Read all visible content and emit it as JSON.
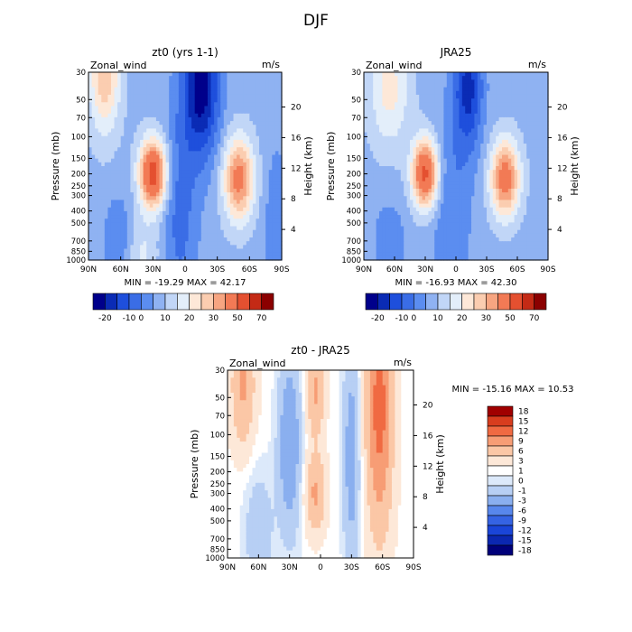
{
  "figure_title": "DJF",
  "colors": {
    "ramp_fullfield": [
      "#00008b",
      "#0a2bb5",
      "#1e4fdc",
      "#3a6de6",
      "#5b8df0",
      "#8fb2f2",
      "#c1d6f7",
      "#e3eefa",
      "#fde8d8",
      "#fbcdb0",
      "#f7a581",
      "#f27a55",
      "#e45030",
      "#c42a15",
      "#8b0000"
    ],
    "ramp_difference": [
      "#00007a",
      "#0b27b0",
      "#1a45d8",
      "#3563e3",
      "#5887ec",
      "#8aafef",
      "#b7cff4",
      "#dce9fa",
      "#ffffff",
      "#fde8d8",
      "#fbc7a6",
      "#f79d75",
      "#f06a42",
      "#d83d1e",
      "#a00000"
    ]
  },
  "chart_data": [
    {
      "type": "heatmap",
      "title": "zt0 (yrs 1-1)",
      "variable": "Zonal_wind",
      "units": "m/s",
      "ylabel": "Pressure (mb)",
      "ylabel_right": "Height (km)",
      "x_ticks": [
        "90N",
        "60N",
        "30N",
        "0",
        "30S",
        "60S",
        "90S"
      ],
      "y_ticks": [
        30,
        50,
        70,
        100,
        150,
        200,
        250,
        300,
        400,
        500,
        700,
        850,
        1000
      ],
      "y_ticks_right": [
        4,
        8,
        12,
        16,
        20
      ],
      "summary": "MIN = -19.29   MAX =  42.17",
      "min": -19.29,
      "max": 42.17,
      "colorbar_labels": [
        "-20",
        "-10",
        "0",
        "10",
        "20",
        "30",
        "50",
        "70"
      ],
      "ylim": [
        1000,
        30
      ]
    },
    {
      "type": "heatmap",
      "title": "JRA25",
      "variable": "Zonal_wind",
      "units": "m/s",
      "ylabel": "Pressure (mb)",
      "ylabel_right": "Height (km)",
      "x_ticks": [
        "90N",
        "60N",
        "30N",
        "0",
        "30S",
        "60S",
        "90S"
      ],
      "y_ticks": [
        30,
        50,
        70,
        100,
        150,
        200,
        250,
        300,
        400,
        500,
        700,
        850,
        1000
      ],
      "y_ticks_right": [
        4,
        8,
        12,
        16,
        20
      ],
      "summary": "MIN = -16.93   MAX =  42.30",
      "min": -16.93,
      "max": 42.3,
      "colorbar_labels": [
        "-20",
        "-10",
        "0",
        "10",
        "20",
        "30",
        "50",
        "70"
      ],
      "ylim": [
        1000,
        30
      ]
    },
    {
      "type": "heatmap",
      "title": "zt0 - JRA25",
      "variable": "Zonal_wind",
      "units": "m/s",
      "ylabel": "Pressure (mb)",
      "ylabel_right": "Height (km)",
      "x_ticks": [
        "90N",
        "60N",
        "30N",
        "0",
        "30S",
        "60S",
        "90S"
      ],
      "y_ticks": [
        30,
        50,
        70,
        100,
        150,
        200,
        250,
        300,
        400,
        500,
        700,
        850,
        1000
      ],
      "y_ticks_right": [
        4,
        8,
        12,
        16,
        20
      ],
      "summary": "MIN = -15.16   MAX =  10.53",
      "min": -15.16,
      "max": 10.53,
      "colorbar_labels": [
        "18",
        "15",
        "12",
        "9",
        "6",
        "3",
        "1",
        "0",
        "-1",
        "-3",
        "-6",
        "-9",
        "-12",
        "-15",
        "-18"
      ],
      "ylim": [
        1000,
        30
      ]
    }
  ]
}
